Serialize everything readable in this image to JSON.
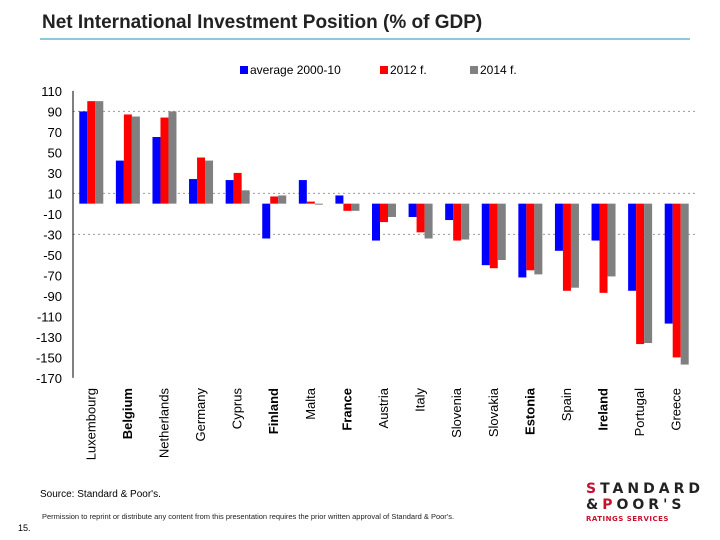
{
  "header": {
    "title": "Net International Investment Position (% of GDP)"
  },
  "chart_data": {
    "type": "bar",
    "title": "Net International Investment Position (% of GDP)",
    "xlabel": "",
    "ylabel": "",
    "ylim": [
      -170,
      110
    ],
    "yticks": [
      110,
      90,
      70,
      50,
      30,
      10,
      -10,
      -30,
      -50,
      -70,
      -90,
      -110,
      -130,
      -150,
      -170
    ],
    "gridlines": [
      90,
      10,
      -30
    ],
    "legend_position": "top",
    "categories": [
      "Luxembourg",
      "Belgium",
      "Netherlands",
      "Germany",
      "Cyprus",
      "Finland",
      "Malta",
      "France",
      "Austria",
      "Italy",
      "Slovenia",
      "Slovakia",
      "Estonia",
      "Spain",
      "Ireland",
      "Portugal",
      "Greece"
    ],
    "bold_categories": [
      "Belgium",
      "Finland",
      "France",
      "Estonia",
      "Ireland"
    ],
    "series": [
      {
        "name": "average 2000-10",
        "color": "#0000ff",
        "values": [
          90,
          42,
          65,
          24,
          23,
          -34,
          23,
          8,
          -36,
          -13,
          -16,
          -60,
          -72,
          -46,
          -36,
          -85,
          -117
        ]
      },
      {
        "name": "2012 f.",
        "color": "#ff0000",
        "values": [
          100,
          87,
          84,
          45,
          30,
          7,
          2,
          -7,
          -18,
          -28,
          -36,
          -63,
          -65,
          -85,
          -87,
          -137,
          -150
        ]
      },
      {
        "name": "2014 f.",
        "color": "#808080",
        "values": [
          100,
          85,
          90,
          42,
          13,
          8,
          -1,
          -7,
          -13,
          -34,
          -35,
          -55,
          -69,
          -82,
          -71,
          -136,
          -157
        ]
      }
    ]
  },
  "footer": {
    "source": "Source: Standard & Poor's.",
    "permission": "Permission to reprint or distribute any content from this presentation requires the prior written approval of Standard & Poor's.",
    "page_number": "15.",
    "logo": {
      "line1": "STANDARD",
      "line2": "&POOR'S",
      "line3": "RATINGS SERVICES"
    }
  }
}
